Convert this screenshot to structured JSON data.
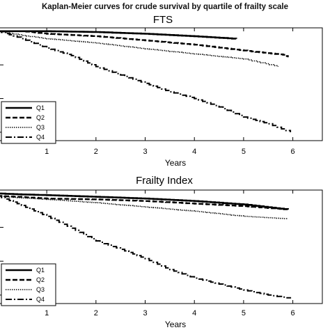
{
  "figure": {
    "title": "Kaplan-Meier curves for crude survival by quartile of frailty scale"
  },
  "chart_data": [
    {
      "type": "line",
      "title": "FTS",
      "xlabel": "Years",
      "ylabel": "",
      "xticks": [
        "1",
        "2",
        "3",
        "4",
        "5",
        "6"
      ],
      "xlim": [
        0.05,
        6.6
      ],
      "ylim": [
        0.35,
        1.02
      ],
      "legend_position": "bottom-left",
      "series": [
        {
          "name": "Q1",
          "style": "solid",
          "x": [
            0,
            1,
            2,
            3,
            4,
            4.85
          ],
          "y": [
            1.0,
            1.0,
            0.995,
            0.985,
            0.97,
            0.955
          ]
        },
        {
          "name": "Q2",
          "style": "dashed",
          "x": [
            0,
            0.5,
            1,
            2,
            3,
            4,
            5,
            5.8,
            5.9
          ],
          "y": [
            1.0,
            1.0,
            0.985,
            0.97,
            0.945,
            0.92,
            0.885,
            0.86,
            0.845
          ]
        },
        {
          "name": "Q3",
          "style": "dotted",
          "x": [
            0,
            0.5,
            1,
            2,
            3,
            4,
            5,
            5.7
          ],
          "y": [
            1.0,
            0.975,
            0.955,
            0.93,
            0.895,
            0.865,
            0.835,
            0.79
          ]
        },
        {
          "name": "Q4",
          "style": "dashdot",
          "x": [
            0,
            0.4,
            1,
            1.5,
            2,
            2.5,
            3,
            3.5,
            4,
            4.5,
            5,
            5.5,
            5.95
          ],
          "y": [
            1.0,
            0.965,
            0.9,
            0.855,
            0.79,
            0.74,
            0.69,
            0.64,
            0.6,
            0.55,
            0.49,
            0.45,
            0.4
          ]
        }
      ]
    },
    {
      "type": "line",
      "title": "Frailty Index",
      "xlabel": "Years",
      "ylabel": "",
      "xticks": [
        "1",
        "2",
        "3",
        "4",
        "5",
        "6"
      ],
      "xlim": [
        0.05,
        6.6
      ],
      "ylim": [
        0.35,
        1.02
      ],
      "legend_position": "bottom-left",
      "series": [
        {
          "name": "Q1",
          "style": "solid",
          "x": [
            0,
            0.4,
            1,
            2,
            3,
            4,
            5,
            5.9
          ],
          "y": [
            1.0,
            0.995,
            0.99,
            0.98,
            0.97,
            0.955,
            0.935,
            0.905
          ]
        },
        {
          "name": "Q2",
          "style": "dashed",
          "x": [
            0,
            0.4,
            1,
            2,
            3,
            4,
            5,
            5.9
          ],
          "y": [
            0.985,
            0.98,
            0.97,
            0.965,
            0.955,
            0.94,
            0.925,
            0.905
          ]
        },
        {
          "name": "Q3",
          "style": "dotted",
          "x": [
            0,
            0.4,
            1,
            2,
            3,
            4,
            5,
            5.9
          ],
          "y": [
            0.985,
            0.975,
            0.965,
            0.945,
            0.92,
            0.895,
            0.865,
            0.85
          ]
        },
        {
          "name": "Q4",
          "style": "dashdot",
          "x": [
            0,
            0.4,
            1,
            1.5,
            2,
            2.5,
            3,
            3.5,
            4,
            4.5,
            5,
            5.5,
            5.95
          ],
          "y": [
            0.985,
            0.94,
            0.865,
            0.795,
            0.72,
            0.67,
            0.615,
            0.55,
            0.5,
            0.465,
            0.43,
            0.4,
            0.38
          ]
        }
      ]
    }
  ]
}
